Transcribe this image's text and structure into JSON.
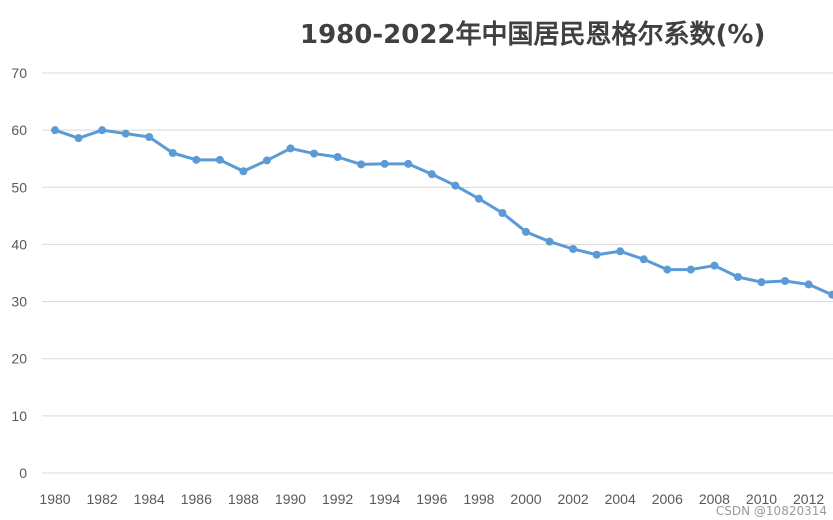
{
  "chart_data": {
    "type": "line",
    "title": "1980-2022年中国居民恩格尔系数(%)",
    "xlabel": "",
    "ylabel": "",
    "ylim": [
      0,
      70
    ],
    "yticks": [
      "0",
      "10",
      "20",
      "30",
      "40",
      "50",
      "60",
      "70"
    ],
    "xticks": [
      "1980",
      "1982",
      "1984",
      "1986",
      "1988",
      "1990",
      "1992",
      "1994",
      "1996",
      "1998",
      "2000",
      "2002",
      "2004",
      "2006",
      "2008",
      "2010",
      "2012"
    ],
    "grid": true,
    "legend": "none",
    "color": "#5b9bd5",
    "series": [
      {
        "x": [
          1980,
          1981,
          1982,
          1983,
          1984,
          1985,
          1986,
          1987,
          1988,
          1989,
          1990,
          1991,
          1992,
          1993,
          1994,
          1995,
          1996,
          1997,
          1998,
          1999,
          2000,
          2001,
          2002,
          2003,
          2004,
          2005,
          2006,
          2007,
          2008,
          2009,
          2010,
          2011,
          2012,
          2013
        ],
        "values": [
          60.0,
          58.6,
          60.0,
          59.4,
          58.8,
          56.0,
          54.8,
          54.8,
          52.8,
          54.7,
          56.8,
          55.9,
          55.3,
          54.0,
          54.1,
          54.1,
          52.3,
          50.3,
          48.0,
          45.5,
          42.2,
          40.5,
          39.2,
          38.2,
          38.8,
          37.4,
          35.6,
          35.6,
          36.3,
          34.3,
          33.4,
          33.6,
          33.0,
          31.2
        ]
      }
    ]
  },
  "watermark": "CSDN @10820314"
}
